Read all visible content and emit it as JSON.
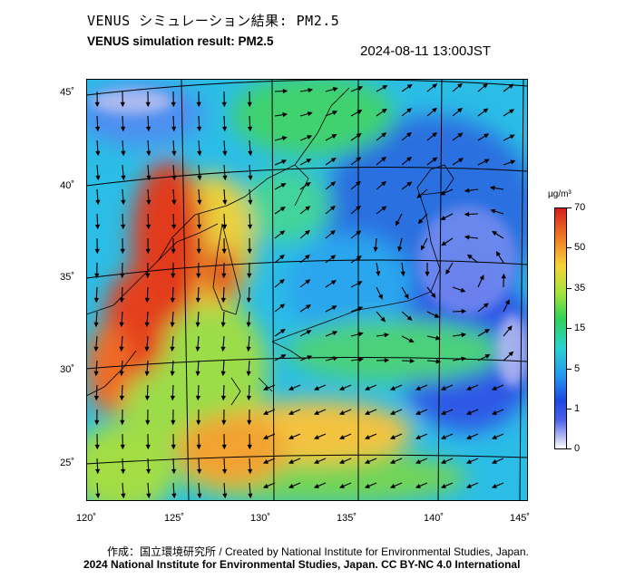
{
  "header": {
    "title_jp": "VENUS シミュレーション結果: PM2.5",
    "title_en": "VENUS simulation result: PM2.5",
    "datetime": "2024-08-11 13:00JST"
  },
  "map": {
    "lat_labels": [
      "45˚",
      "40˚",
      "35˚",
      "30˚",
      "25˚"
    ],
    "lon_labels": [
      "120˚",
      "125˚",
      "130˚",
      "135˚",
      "140˚",
      "145˚"
    ]
  },
  "colorbar": {
    "unit": "µg/m³",
    "labels": [
      "70",
      "50",
      "35",
      "15",
      "5",
      "1",
      "0"
    ],
    "colors": [
      "#d41e1e",
      "#f07a22",
      "#f5d43a",
      "#2fd258",
      "#2ad3cf",
      "#2396ef",
      "#1f48e2",
      "#ffffff"
    ]
  },
  "footer": {
    "credit_jp_en": "作成：国立環境研究所 / Created by National Institute for Environmental Studies, Japan.",
    "copyright": "2024 National Institute for Environmental Studies, Japan. CC BY-NC 4.0 International"
  }
}
